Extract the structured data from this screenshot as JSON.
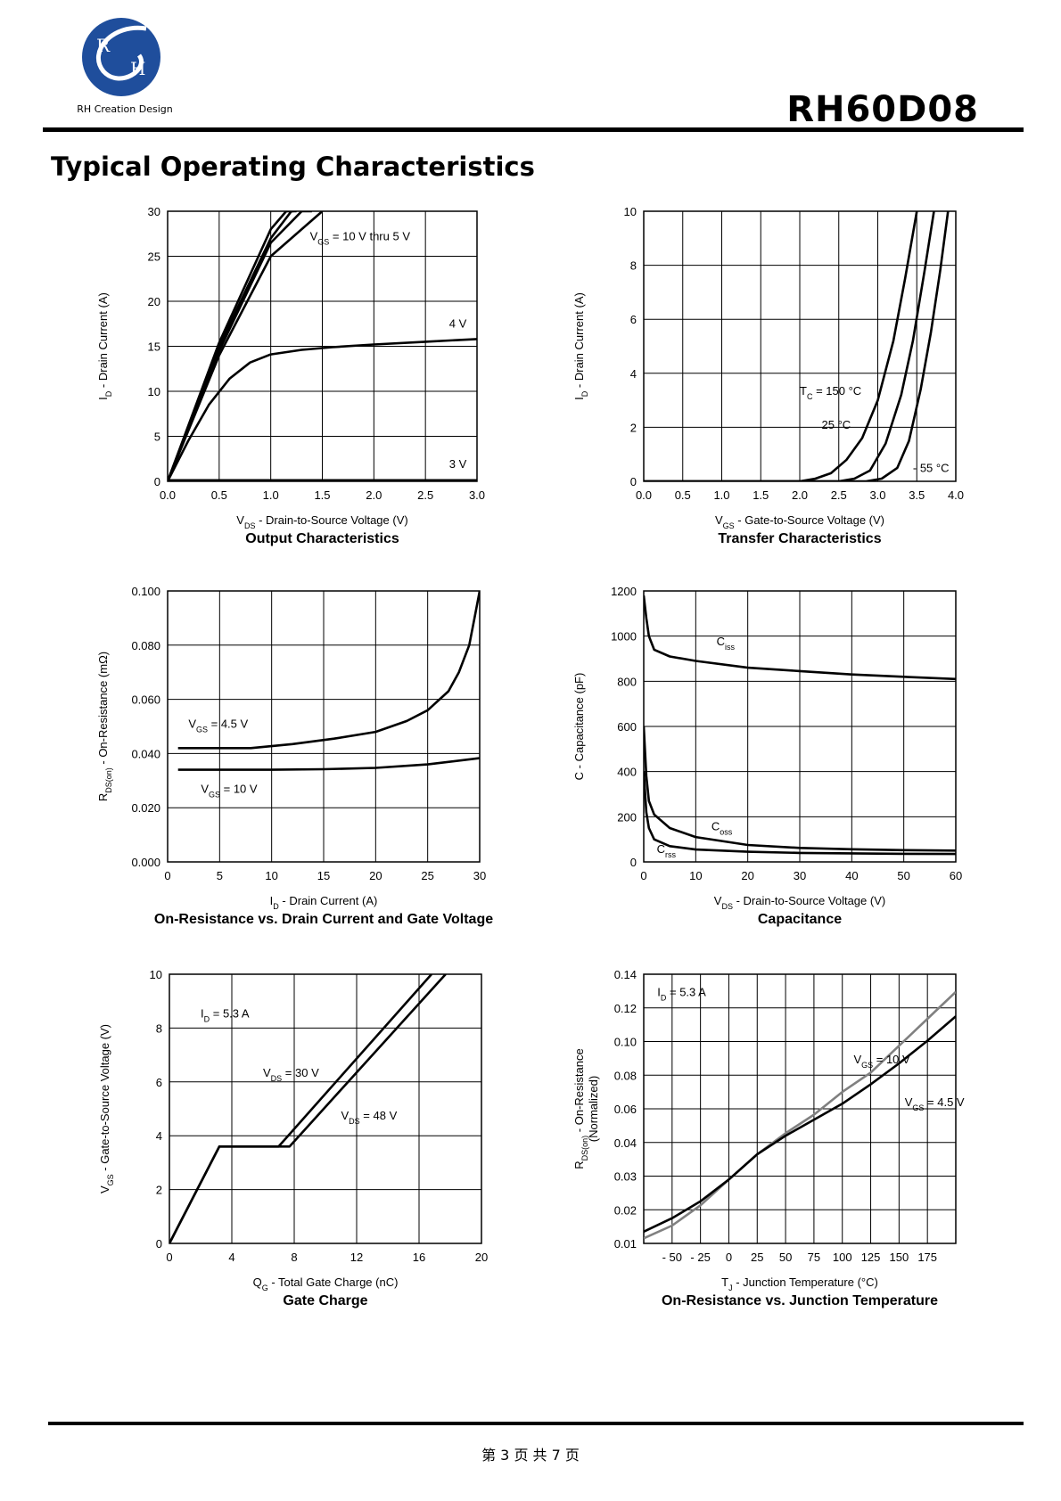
{
  "header": {
    "logo_text": "RH Creation Design",
    "logo_letters": [
      "R",
      "H"
    ],
    "part_number": "RH60D08",
    "section_title": "Typical Operating Characteristics"
  },
  "footer": {
    "page_text": "第 3 页 共 7 页"
  },
  "colors": {
    "ink": "#000000",
    "grid": "#000000",
    "gray_curve": "#808080",
    "logo_blue": "#1f4e9c"
  },
  "chart_data": [
    {
      "id": "output",
      "type": "line",
      "caption": "Output Characteristics",
      "xlabel": {
        "main": "V",
        "sub": "DS",
        "rest": " - Drain-to-Source Voltage (V)"
      },
      "ylabel": {
        "main": "I",
        "sub": "D",
        "rest": " - Drain Current (A)"
      },
      "xlim": [
        0,
        3
      ],
      "ylim": [
        0,
        30
      ],
      "xticks": [
        0,
        0.5,
        1,
        1.5,
        2,
        2.5,
        3
      ],
      "xtick_labels": [
        "0.0",
        "0.5",
        "1.0",
        "1.5",
        "2.0",
        "2.5",
        "3.0"
      ],
      "yticks": [
        0,
        5,
        10,
        15,
        20,
        25,
        30
      ],
      "ytick_labels": [
        "0",
        "5",
        "10",
        "15",
        "20",
        "25",
        "30"
      ],
      "series": [
        {
          "x": [
            0,
            0.5,
            1.0,
            1.15,
            1.22
          ],
          "y": [
            0,
            15.4,
            28,
            30,
            30
          ]
        },
        {
          "x": [
            0,
            0.5,
            1.0,
            1.2,
            1.25
          ],
          "y": [
            0,
            15,
            27,
            30,
            30
          ]
        },
        {
          "x": [
            0,
            0.5,
            1.0,
            1.3,
            1.4
          ],
          "y": [
            0,
            14.5,
            26.5,
            30,
            30
          ]
        },
        {
          "x": [
            0,
            0.5,
            1.0,
            1.4,
            1.5
          ],
          "y": [
            0,
            14,
            25,
            29,
            30
          ]
        },
        {
          "x": [
            0,
            0.2,
            0.4,
            0.6,
            0.8,
            1.0,
            1.3,
            1.6,
            2.0,
            2.5,
            3.0
          ],
          "y": [
            0,
            4.5,
            8.5,
            11.4,
            13.2,
            14.1,
            14.6,
            14.9,
            15.2,
            15.5,
            15.8
          ]
        },
        {
          "x": [
            0,
            3.0
          ],
          "y": [
            0,
            0
          ]
        }
      ],
      "annotations": [
        {
          "parts": [
            [
              "V",
              ""
            ],
            [
              "GS",
              "sub"
            ],
            [
              " = 10 V thru 5 V",
              ""
            ]
          ],
          "x": 1.38,
          "y": 26.8
        },
        {
          "parts": [
            [
              "4 V",
              ""
            ]
          ],
          "x": 2.73,
          "y": 17.1
        },
        {
          "parts": [
            [
              "3 V",
              ""
            ]
          ],
          "x": 2.73,
          "y": 1.5
        }
      ]
    },
    {
      "id": "transfer",
      "type": "line",
      "caption": "Transfer Characteristics",
      "xlabel": {
        "main": "V",
        "sub": "GS",
        "rest": " - Gate-to-Source Voltage (V)"
      },
      "ylabel": {
        "main": "I",
        "sub": "D",
        "rest": " - Drain Current (A)"
      },
      "xlim": [
        0,
        4
      ],
      "ylim": [
        0,
        10
      ],
      "xticks": [
        0,
        0.5,
        1,
        1.5,
        2,
        2.5,
        3,
        3.5,
        4
      ],
      "xtick_labels": [
        "0.0",
        "0.5",
        "1.0",
        "1.5",
        "2.0",
        "2.5",
        "3.0",
        "3.5",
        "4.0"
      ],
      "yticks": [
        0,
        2,
        4,
        6,
        8,
        10
      ],
      "ytick_labels": [
        "0",
        "2",
        "4",
        "6",
        "8",
        "10"
      ],
      "series": [
        {
          "name": "150 °C",
          "x": [
            0,
            2.0,
            2.2,
            2.4,
            2.6,
            2.8,
            3.0,
            3.2,
            3.35,
            3.5
          ],
          "y": [
            0,
            0,
            0.1,
            0.3,
            0.8,
            1.6,
            3.0,
            5.2,
            7.5,
            10
          ]
        },
        {
          "name": "25 °C",
          "x": [
            0,
            2.5,
            2.7,
            2.9,
            3.1,
            3.3,
            3.45,
            3.6,
            3.72
          ],
          "y": [
            0,
            0,
            0.1,
            0.4,
            1.4,
            3.2,
            5.2,
            7.8,
            10
          ]
        },
        {
          "name": "-55 °C",
          "x": [
            0,
            2.85,
            3.05,
            3.25,
            3.4,
            3.55,
            3.68,
            3.8,
            3.9
          ],
          "y": [
            0,
            0,
            0.1,
            0.5,
            1.5,
            3.4,
            5.5,
            7.8,
            10
          ]
        }
      ],
      "annotations": [
        {
          "parts": [
            [
              "T",
              ""
            ],
            [
              "C",
              "sub"
            ],
            [
              " = 150 °C",
              ""
            ]
          ],
          "x": 2.0,
          "y": 3.2
        },
        {
          "parts": [
            [
              "25 °C",
              ""
            ]
          ],
          "x": 2.28,
          "y": 1.95
        },
        {
          "parts": [
            [
              "- 55 °C",
              ""
            ]
          ],
          "x": 3.45,
          "y": 0.35
        }
      ]
    },
    {
      "id": "onres",
      "type": "line",
      "caption": "On-Resistance vs. Drain Current and Gate Voltage",
      "xlabel": {
        "main": "I",
        "sub": "D",
        "rest": " - Drain Current (A)"
      },
      "ylabel": {
        "main": "R",
        "sub": "DS(on)",
        "rest": " - On-Resistance (mΩ)"
      },
      "xlim": [
        0,
        30
      ],
      "ylim": [
        0,
        0.1
      ],
      "xticks": [
        0,
        5,
        10,
        15,
        20,
        25,
        30
      ],
      "xtick_labels": [
        "0",
        "5",
        "10",
        "15",
        "20",
        "25",
        "30"
      ],
      "yticks": [
        0,
        0.02,
        0.04,
        0.06,
        0.08,
        0.1
      ],
      "ytick_labels": [
        "0.000",
        "0.020",
        "0.040",
        "0.060",
        "0.080",
        "0.100"
      ],
      "series": [
        {
          "name": "VGS = 4.5 V",
          "x": [
            1,
            5,
            8,
            12,
            16,
            20,
            23,
            25,
            27,
            28,
            29,
            29.5,
            30
          ],
          "y": [
            0.042,
            0.042,
            0.042,
            0.0435,
            0.0455,
            0.048,
            0.052,
            0.056,
            0.063,
            0.07,
            0.08,
            0.09,
            0.1
          ]
        },
        {
          "name": "VGS = 10 V",
          "x": [
            1,
            5,
            10,
            15,
            20,
            25,
            30
          ],
          "y": [
            0.034,
            0.034,
            0.034,
            0.0342,
            0.0347,
            0.036,
            0.0383
          ]
        }
      ],
      "annotations": [
        {
          "parts": [
            [
              "V",
              ""
            ],
            [
              "GS",
              "sub"
            ],
            [
              " = 4.5 V",
              ""
            ]
          ],
          "x": 2.0,
          "y": 0.0495
        },
        {
          "parts": [
            [
              "V",
              ""
            ],
            [
              "GS",
              "sub"
            ],
            [
              " = 10 V",
              ""
            ]
          ],
          "x": 3.2,
          "y": 0.0255
        }
      ]
    },
    {
      "id": "capacitance",
      "type": "line",
      "caption": "Capacitance",
      "xlabel": {
        "main": "V",
        "sub": "DS",
        "rest": " - Drain-to-Source Voltage (V)"
      },
      "ylabel": {
        "main": "C - Capacitance (pF)",
        "sub": "",
        "rest": ""
      },
      "xlim": [
        0,
        60
      ],
      "ylim": [
        0,
        1200
      ],
      "xticks": [
        0,
        10,
        20,
        30,
        40,
        50,
        60
      ],
      "xtick_labels": [
        "0",
        "10",
        "20",
        "30",
        "40",
        "50",
        "60"
      ],
      "yticks": [
        0,
        200,
        400,
        600,
        800,
        1000,
        1200
      ],
      "ytick_labels": [
        "0",
        "200",
        "400",
        "600",
        "800",
        "1000",
        "1200"
      ],
      "series": [
        {
          "name": "Ciss",
          "x": [
            0,
            0.5,
            1,
            2,
            5,
            10,
            20,
            30,
            40,
            50,
            60
          ],
          "y": [
            1180,
            1080,
            1000,
            940,
            910,
            890,
            860,
            845,
            830,
            820,
            810
          ]
        },
        {
          "name": "Coss",
          "x": [
            0,
            0.5,
            1,
            2,
            5,
            10,
            20,
            30,
            40,
            50,
            60
          ],
          "y": [
            600,
            380,
            270,
            210,
            150,
            110,
            75,
            62,
            56,
            52,
            50
          ]
        },
        {
          "name": "Crss",
          "x": [
            0,
            0.5,
            1,
            2,
            5,
            10,
            20,
            30,
            40,
            50,
            60
          ],
          "y": [
            400,
            220,
            150,
            100,
            70,
            55,
            45,
            40,
            38,
            36,
            35
          ]
        }
      ],
      "annotations": [
        {
          "parts": [
            [
              "C",
              ""
            ],
            [
              "iss",
              "sub"
            ]
          ],
          "x": 14,
          "y": 960
        },
        {
          "parts": [
            [
              "C",
              ""
            ],
            [
              "oss",
              "sub"
            ]
          ],
          "x": 13,
          "y": 140
        },
        {
          "parts": [
            [
              "C",
              ""
            ],
            [
              "rss",
              "sub"
            ]
          ],
          "x": 2.5,
          "y": 40
        }
      ]
    },
    {
      "id": "gatecharge",
      "type": "line",
      "caption": "Gate Charge",
      "xlabel": {
        "main": "Q",
        "sub": "G",
        "rest": " - Total Gate Charge (nC)"
      },
      "ylabel": {
        "main": "V",
        "sub": "GS",
        "rest": " - Gate-to-Source Voltage (V)"
      },
      "xlim": [
        0,
        20
      ],
      "ylim": [
        0,
        10
      ],
      "xticks": [
        0,
        4,
        8,
        12,
        16,
        20
      ],
      "xtick_labels": [
        "0",
        "4",
        "8",
        "12",
        "16",
        "20"
      ],
      "yticks": [
        0,
        2,
        4,
        6,
        8,
        10
      ],
      "ytick_labels": [
        "0",
        "2",
        "4",
        "6",
        "8",
        "10"
      ],
      "series": [
        {
          "name": "VDS = 30 V",
          "x": [
            0,
            3.2,
            7.0,
            16.8
          ],
          "y": [
            0,
            3.6,
            3.6,
            10
          ]
        },
        {
          "name": "VDS = 48 V",
          "x": [
            0,
            3.2,
            7.7,
            17.7
          ],
          "y": [
            0,
            3.6,
            3.6,
            10
          ]
        }
      ],
      "annotations": [
        {
          "parts": [
            [
              "I",
              ""
            ],
            [
              "D",
              "sub"
            ],
            [
              " = 5.3 A",
              ""
            ]
          ],
          "x": 2.0,
          "y": 8.4
        },
        {
          "parts": [
            [
              "V",
              ""
            ],
            [
              "DS",
              "sub"
            ],
            [
              " = 30 V",
              ""
            ]
          ],
          "x": 6.0,
          "y": 6.2
        },
        {
          "parts": [
            [
              "V",
              ""
            ],
            [
              "DS",
              "sub"
            ],
            [
              " = 48 V",
              ""
            ]
          ],
          "x": 11.0,
          "y": 4.6
        }
      ]
    },
    {
      "id": "onres_temp",
      "type": "line",
      "caption": "On-Resistance vs. Junction Temperature",
      "xlabel": {
        "main": "T",
        "sub": "J",
        "rest": " - Junction Temperature (°C)"
      },
      "ylabel": {
        "main": "R",
        "sub": "DS(on)",
        "rest": " - On-Resistance",
        "line2": "(Normalized)"
      },
      "xlim": [
        -75,
        200
      ],
      "ylim": [
        0.01,
        0.14
      ],
      "xticks": [
        -75,
        -50,
        -25,
        0,
        25,
        50,
        75,
        100,
        125,
        150,
        175,
        200
      ],
      "xtick_labels": [
        "",
        "- 50",
        "- 25",
        "0",
        "25",
        "50",
        "75",
        "100",
        "125",
        "150",
        "175",
        ""
      ],
      "yticks": [
        0.01,
        0.02,
        0.03,
        0.04,
        0.06,
        0.08,
        0.1,
        0.12,
        0.14
      ],
      "ytick_labels": [
        "0.01",
        "0.02",
        "0.03",
        "0.04",
        "0.06",
        "0.08",
        "0.10",
        "0.12",
        "0.14"
      ],
      "series": [
        {
          "name": "VGS = 10 V",
          "color": "gray",
          "x": [
            -75,
            -50,
            -25,
            0,
            25,
            50,
            75,
            100,
            125,
            150,
            175,
            200
          ],
          "y": [
            0.0115,
            0.0153,
            0.0213,
            0.029,
            0.0365,
            0.0455,
            0.0565,
            0.07,
            0.0815,
            0.0975,
            0.1135,
            0.1295
          ]
        },
        {
          "name": "VGS = 4.5 V",
          "color": "black",
          "x": [
            -75,
            -50,
            -25,
            0,
            25,
            50,
            75,
            100,
            125,
            150,
            175,
            200
          ],
          "y": [
            0.0135,
            0.0175,
            0.0225,
            0.029,
            0.0365,
            0.044,
            0.0535,
            0.063,
            0.0745,
            0.087,
            0.1005,
            0.115
          ]
        }
      ],
      "annotations": [
        {
          "parts": [
            [
              "I",
              ""
            ],
            [
              "D",
              "sub"
            ],
            [
              " = 5.3 A",
              ""
            ]
          ],
          "x": -63,
          "y": 0.127
        },
        {
          "parts": [
            [
              "V",
              ""
            ],
            [
              "GS",
              "sub"
            ],
            [
              " = 10 V",
              ""
            ]
          ],
          "x": 110,
          "y": 0.087
        },
        {
          "parts": [
            [
              "V",
              ""
            ],
            [
              "GS",
              "sub"
            ],
            [
              " = 4.5 V",
              ""
            ]
          ],
          "x": 155,
          "y": 0.0615
        }
      ]
    }
  ]
}
